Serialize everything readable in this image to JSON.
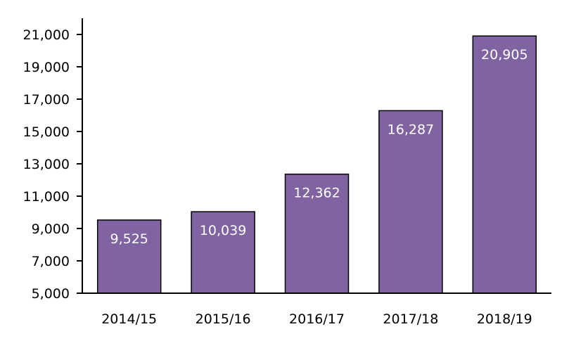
{
  "chart_data": {
    "type": "bar",
    "categories": [
      "2014/15",
      "2015/16",
      "2016/17",
      "2017/18",
      "2018/19"
    ],
    "values": [
      9525,
      10039,
      12362,
      16287,
      20905
    ],
    "data_labels": [
      "9,525",
      "10,039",
      "12,362",
      "16,287",
      "20,905"
    ],
    "yticks": [
      5000,
      7000,
      9000,
      11000,
      13000,
      15000,
      17000,
      19000,
      21000
    ],
    "ytick_labels": [
      "5,000",
      "7,000",
      "9,000",
      "11,000",
      "13,000",
      "15,000",
      "17,000",
      "19,000",
      "21,000"
    ],
    "ylim": [
      5000,
      22000
    ],
    "title": "",
    "xlabel": "",
    "ylabel": "",
    "grid": false,
    "legend": "none",
    "colors": {
      "bar_fill": "#8064a2",
      "bar_stroke": "#000000",
      "axis": "#000000",
      "data_label": "#ffffff"
    }
  }
}
